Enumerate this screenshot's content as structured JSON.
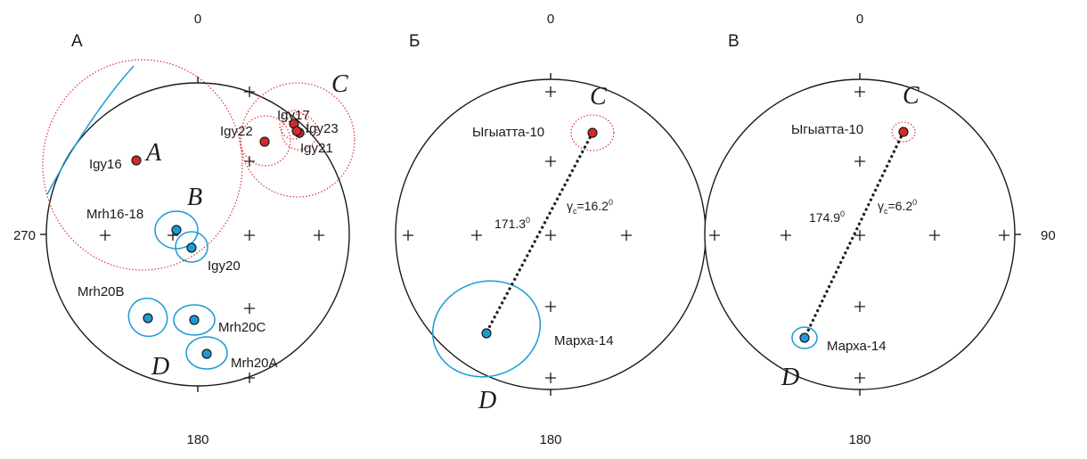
{
  "colors": {
    "site_c": "#d42a2a",
    "site_d": "#1c9ad6",
    "outline": "#1a1a1a"
  },
  "panels": [
    {
      "letter": "А",
      "ticks": {
        "top": "0",
        "bottom": "180",
        "left": "270"
      },
      "group_labels": {
        "a": "A",
        "b": "B",
        "c": "C",
        "d": "D"
      },
      "sites": [
        {
          "id": "Igy16",
          "group": "A"
        },
        {
          "id": "Igy22",
          "group": "C"
        },
        {
          "id": "Igy17",
          "group": "C"
        },
        {
          "id": "Igy23",
          "group": "C"
        },
        {
          "id": "Igy21",
          "group": "C"
        },
        {
          "id": "Mrh16-18",
          "group": "B"
        },
        {
          "id": "Igy20",
          "group": "B"
        },
        {
          "id": "Mrh20B",
          "group": "D"
        },
        {
          "id": "Mrh20C",
          "group": "D"
        },
        {
          "id": "Mrh20A",
          "group": "D"
        }
      ]
    },
    {
      "letter": "Б",
      "ticks": {
        "top": "0",
        "bottom": "180"
      },
      "group_labels": {
        "c": "C",
        "d": "D"
      },
      "pole_c": "Ыгыатта-10",
      "pole_d": "Марха-14",
      "angle": {
        "base": "171.3",
        "sup": "0"
      },
      "gamma": {
        "sym": "γ",
        "sub": "c",
        "value": "=16.2",
        "sup": "0"
      }
    },
    {
      "letter": "В",
      "ticks": {
        "top": "0",
        "bottom": "180",
        "right": "90"
      },
      "group_labels": {
        "c": "C",
        "d": "D"
      },
      "pole_c": "Ыгыатта-10",
      "pole_d": "Марха-14",
      "angle": {
        "base": "174.9",
        "sup": "0"
      },
      "gamma": {
        "sym": "γ",
        "sub": "c",
        "value": "=6.2",
        "sup": "0"
      }
    }
  ]
}
